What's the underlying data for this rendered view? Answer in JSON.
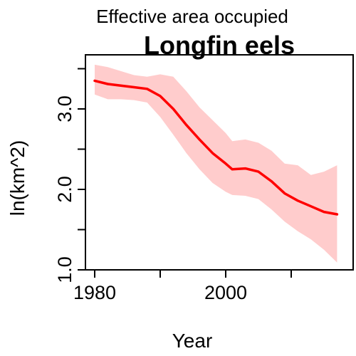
{
  "chart_data": {
    "type": "line",
    "title": "Longfin eels",
    "subtitle": "Effective area occupied",
    "xlabel": "Year",
    "ylabel": "ln(km^2)",
    "xlim": [
      1979,
      2017
    ],
    "ylim": [
      1.0,
      3.6
    ],
    "x_ticks": [
      1980,
      1990,
      2000,
      2010
    ],
    "x_tick_labels": [
      "1980",
      "",
      "2000",
      ""
    ],
    "y_ticks": [
      1.0,
      1.5,
      2.0,
      2.5,
      3.0,
      3.5
    ],
    "y_tick_labels": [
      "1.0",
      "",
      "2.0",
      "",
      "3.0",
      ""
    ],
    "grid": false,
    "colors": {
      "line": "#ff0000",
      "band": "#ffcccc"
    },
    "series": [
      {
        "x": [
          1980,
          1982,
          1984,
          1986,
          1988,
          1990,
          1992,
          1994,
          1996,
          1998,
          2000,
          2001,
          2003,
          2005,
          2007,
          2009,
          2011,
          2013,
          2015,
          2017
        ],
        "y": [
          3.35,
          3.31,
          3.29,
          3.27,
          3.25,
          3.16,
          3.0,
          2.8,
          2.62,
          2.45,
          2.32,
          2.25,
          2.26,
          2.22,
          2.1,
          1.95,
          1.86,
          1.79,
          1.72,
          1.69
        ],
        "lower": [
          3.18,
          3.12,
          3.12,
          3.11,
          3.08,
          2.9,
          2.68,
          2.45,
          2.25,
          2.08,
          1.97,
          1.93,
          1.92,
          1.88,
          1.75,
          1.6,
          1.48,
          1.38,
          1.25,
          1.09
        ],
        "upper": [
          3.55,
          3.52,
          3.47,
          3.42,
          3.4,
          3.43,
          3.4,
          3.22,
          3.02,
          2.86,
          2.7,
          2.6,
          2.62,
          2.58,
          2.48,
          2.32,
          2.3,
          2.18,
          2.22,
          2.3
        ]
      }
    ]
  }
}
